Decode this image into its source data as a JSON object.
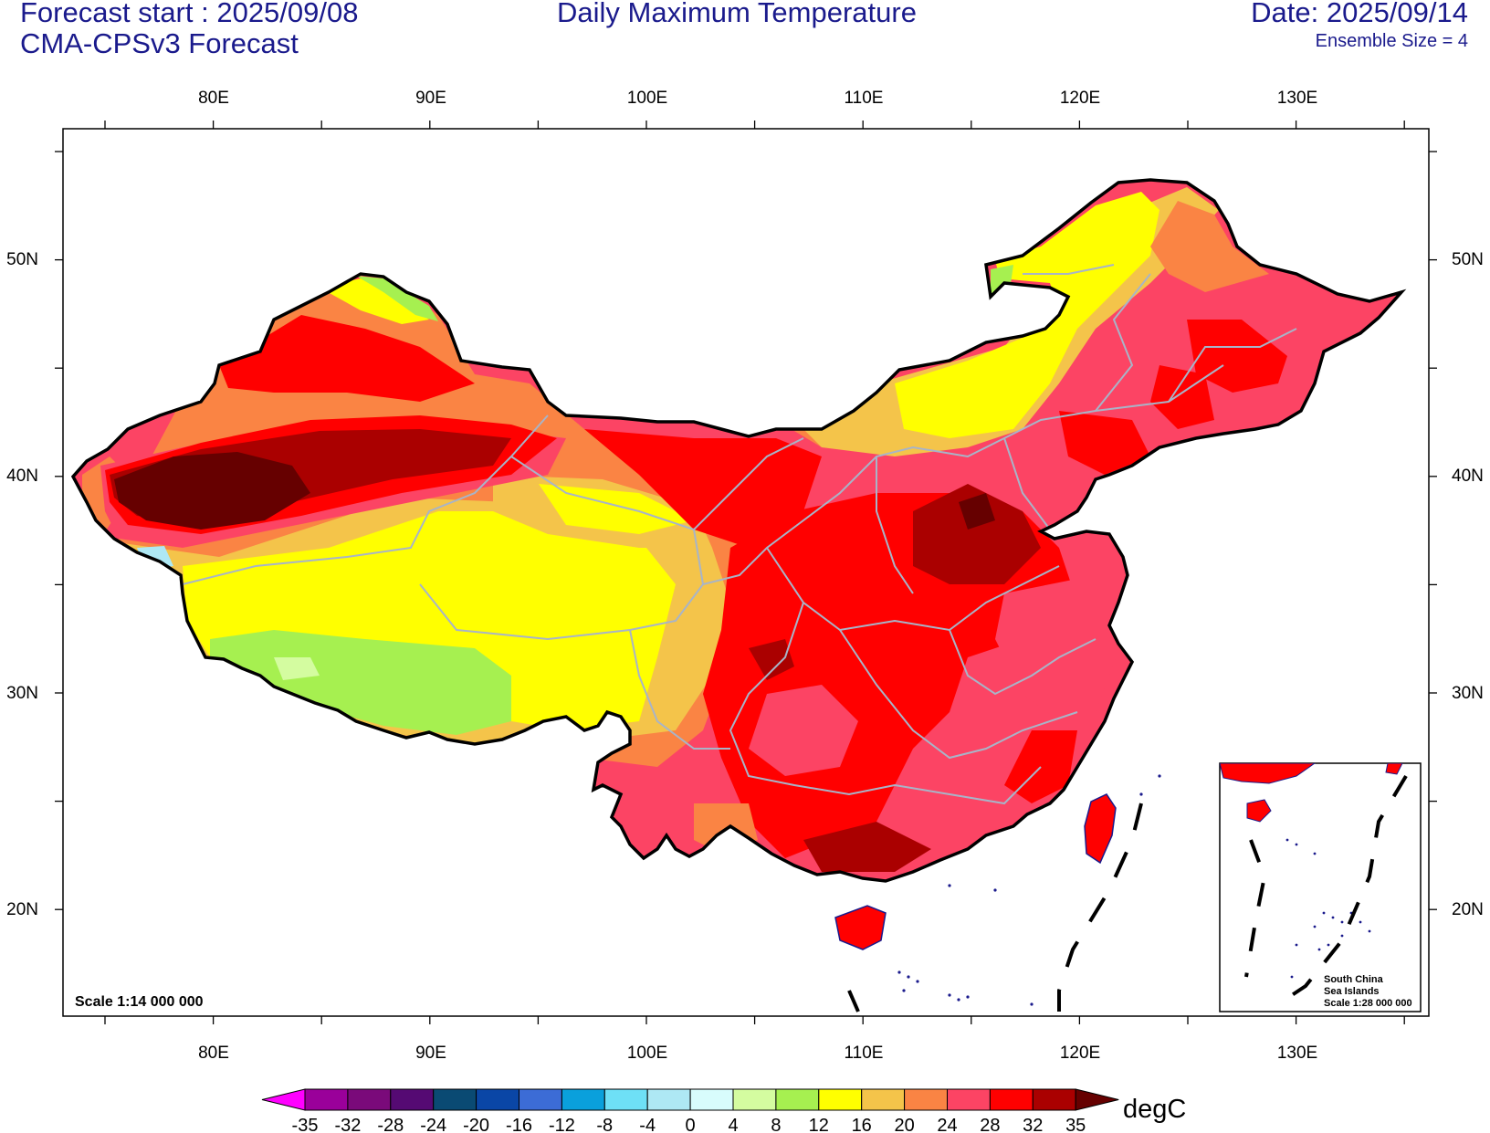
{
  "header": {
    "forecast_start": "Forecast start : 2025/09/08",
    "model": "CMA-CPSv3 Forecast",
    "title": "Daily Maximum Temperature",
    "date": "Date: 2025/09/14",
    "ensemble": "Ensemble Size = 4"
  },
  "map": {
    "scale_main": "Scale 1:14 000 000",
    "inset_line1": "South China",
    "inset_line2": "Sea Islands",
    "inset_scale": "Scale 1:28 000 000",
    "lon_ticks": [
      "80E",
      "90E",
      "100E",
      "110E",
      "120E",
      "130E"
    ],
    "lat_ticks": [
      "50N",
      "40N",
      "30N",
      "20N"
    ],
    "lon_range": [
      73,
      136
    ],
    "lat_range": [
      15,
      55
    ],
    "land_outline_color": "#000000",
    "province_line_color": "#a8b4c8",
    "coast_color": "#1a1a8c"
  },
  "colorbar": {
    "unit": "degC",
    "labels": [
      "-35",
      "-32",
      "-28",
      "-24",
      "-20",
      "-16",
      "-12",
      "-8",
      "-4",
      "0",
      "4",
      "8",
      "12",
      "16",
      "20",
      "24",
      "28",
      "32",
      "35"
    ],
    "colors": [
      "#ff00ff",
      "#9a009a",
      "#7a0a7a",
      "#550a73",
      "#0a4a73",
      "#0a46a6",
      "#3c6cd6",
      "#0aa0dc",
      "#6ee0f6",
      "#aee8f4",
      "#d8fcfc",
      "#d4fca0",
      "#a6f050",
      "#ffff00",
      "#f4c44a",
      "#fa8444",
      "#fc4464",
      "#ff0000",
      "#aa0000",
      "#660000"
    ]
  }
}
